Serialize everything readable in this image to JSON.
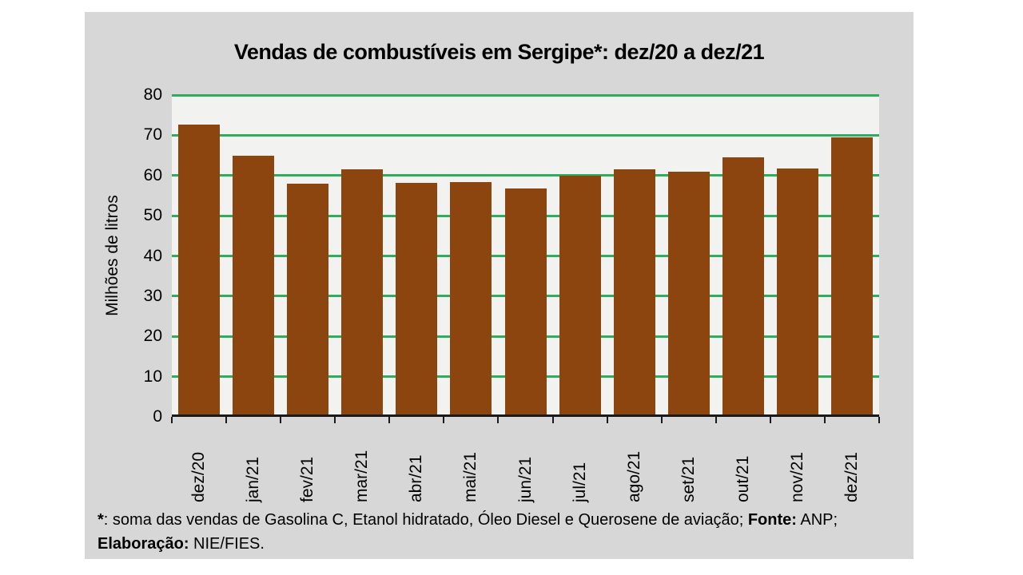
{
  "chart_data": {
    "type": "bar",
    "title": "Vendas de combustíveis em Sergipe*: dez/20 a dez/21",
    "categories": [
      "dez/20",
      "jan/21",
      "fev/21",
      "mar/21",
      "abr/21",
      "mai/21",
      "jun/21",
      "jul/21",
      "ago/21",
      "set/21",
      "out/21",
      "nov/21",
      "dez/21"
    ],
    "values": [
      72.6,
      64.9,
      58.0,
      61.6,
      58.2,
      58.4,
      56.8,
      60.0,
      61.6,
      60.9,
      64.5,
      61.8,
      69.5
    ],
    "xlabel": "",
    "ylabel": "Milhões de litros",
    "ylim": [
      0,
      80
    ],
    "ytick_interval": 10,
    "yticks": [
      0,
      10,
      20,
      30,
      40,
      50,
      60,
      70,
      80
    ],
    "grid": true,
    "legend": false,
    "colors": {
      "bar": "#8c450f",
      "gridline": "#2fad5f",
      "plot_background": "#f2f2f0",
      "panel_background": "#d7d7d7",
      "axis": "#1a1a1a",
      "text": "#000000"
    }
  },
  "footnote": {
    "lines": [
      [
        {
          "text": "*",
          "bold": true
        },
        {
          "text": ": soma das vendas de Gasolina C, Etanol hidratado, Óleo Diesel e Querosene de aviação; ",
          "bold": false
        },
        {
          "text": "Fonte:",
          "bold": true
        },
        {
          "text": " ANP;",
          "bold": false
        }
      ],
      [
        {
          "text": "Elaboração:",
          "bold": true
        },
        {
          "text": " NIE/FIES.",
          "bold": false
        }
      ]
    ]
  }
}
